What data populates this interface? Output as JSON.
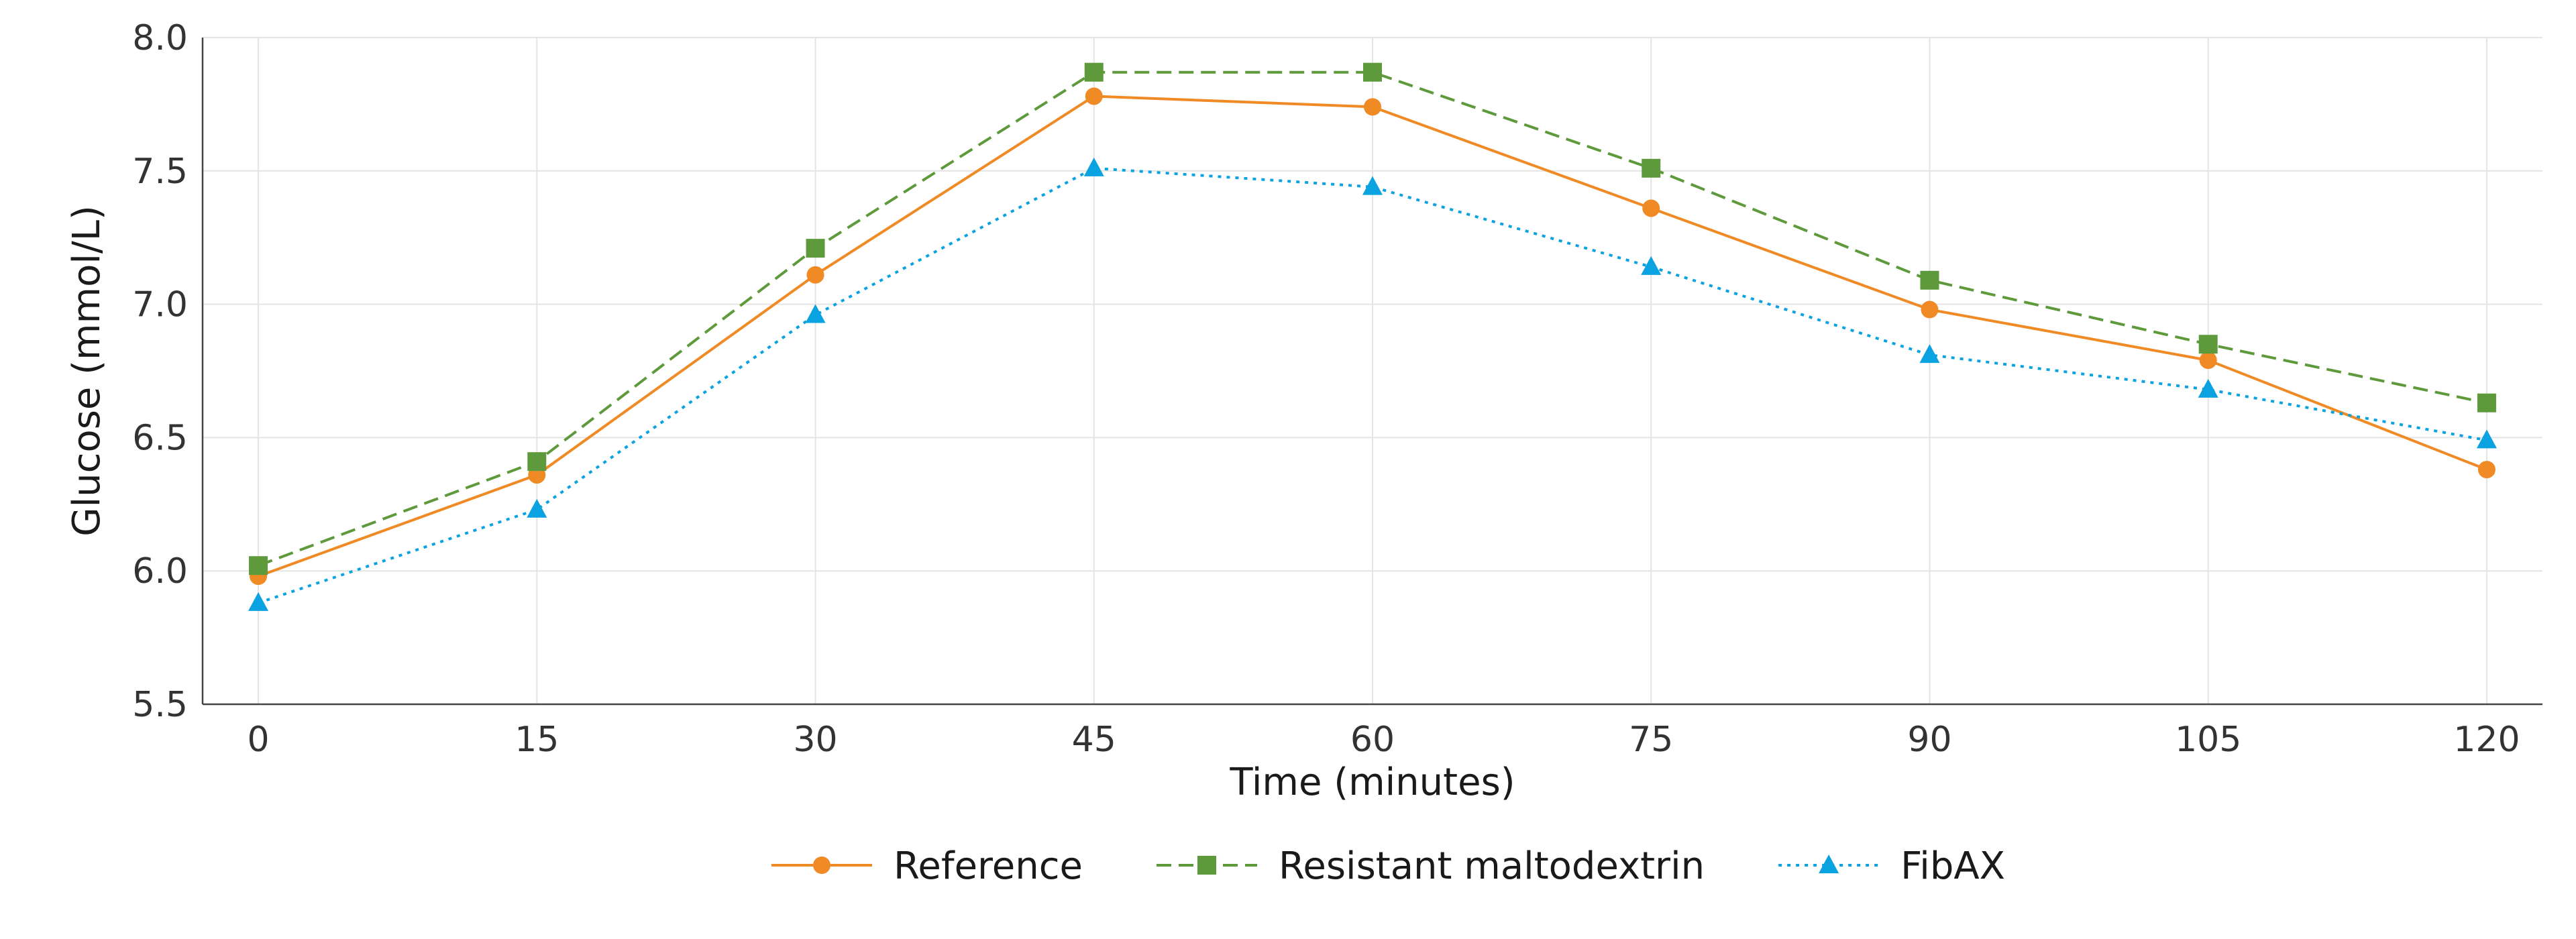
{
  "chart_data": {
    "type": "line",
    "title": "",
    "xlabel": "Time (minutes)",
    "ylabel": "Glucose (mmol/L)",
    "x": [
      0,
      15,
      30,
      45,
      60,
      75,
      90,
      105,
      120
    ],
    "xlim": [
      -3,
      123
    ],
    "ylim": [
      5.5,
      8.0
    ],
    "xticks": [
      "0",
      "15",
      "30",
      "45",
      "60",
      "75",
      "90",
      "105",
      "120"
    ],
    "yticks": [
      "5.5",
      "6.0",
      "6.5",
      "7.0",
      "7.5",
      "8.0"
    ],
    "grid": true,
    "legend_position": "bottom-center",
    "series": [
      {
        "name": "Reference",
        "values": [
          5.98,
          6.36,
          7.11,
          7.78,
          7.74,
          7.36,
          6.98,
          6.79,
          6.38
        ],
        "color": "#EF8A25",
        "line_style": "solid",
        "marker": "circle"
      },
      {
        "name": "Resistant maltodextrin",
        "values": [
          6.02,
          6.41,
          7.21,
          7.87,
          7.87,
          7.51,
          7.09,
          6.85,
          6.63
        ],
        "color": "#5E9A3C",
        "line_style": "dashed",
        "marker": "square"
      },
      {
        "name": "FibAX",
        "values": [
          5.88,
          6.23,
          6.96,
          7.51,
          7.44,
          7.14,
          6.81,
          6.68,
          6.49
        ],
        "color": "#0AA2E0",
        "line_style": "dotted",
        "marker": "triangle"
      }
    ]
  }
}
